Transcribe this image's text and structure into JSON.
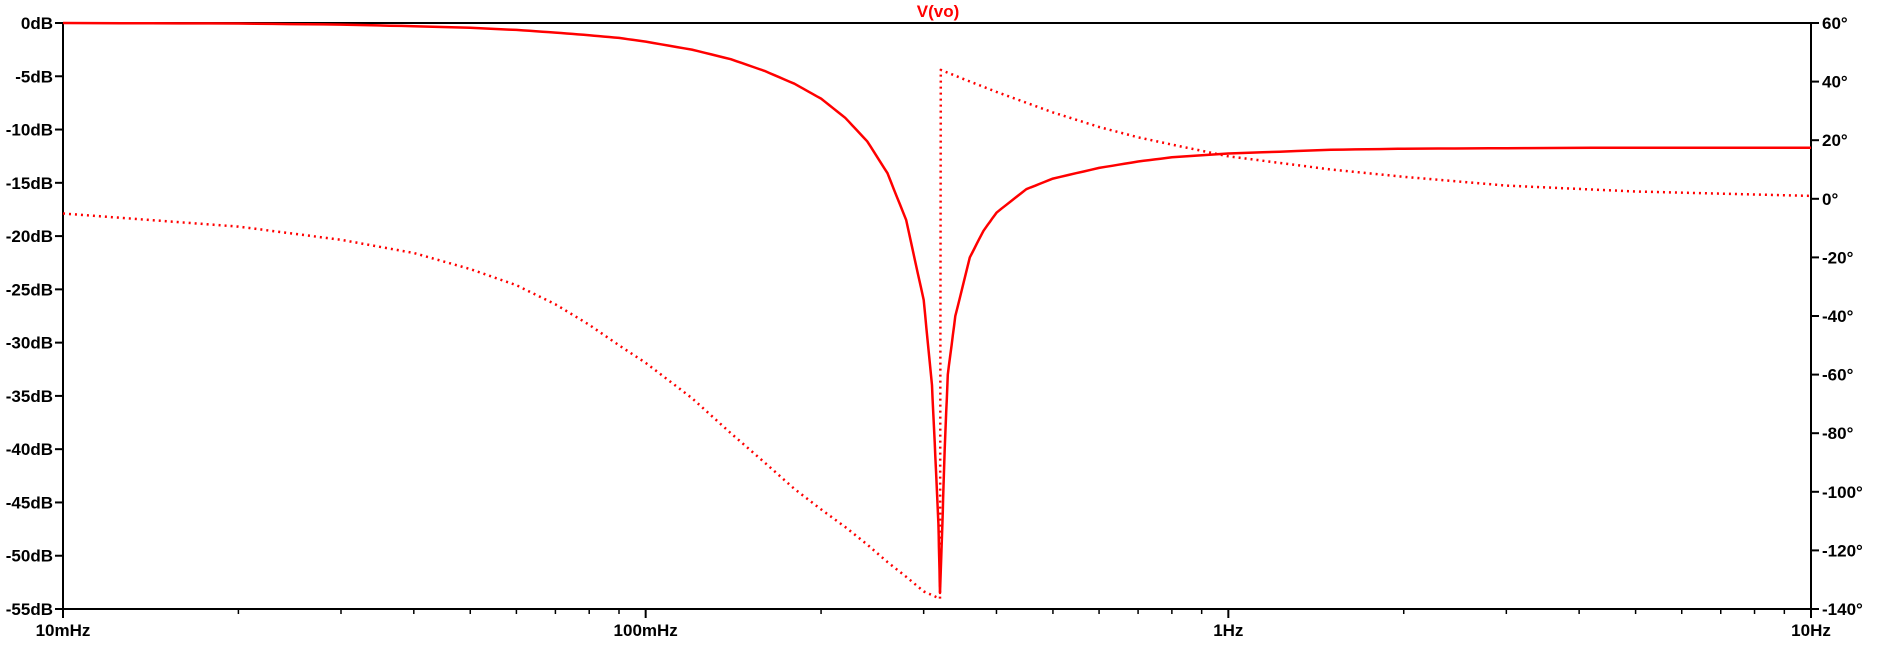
{
  "chart_data": {
    "type": "line",
    "title": "V(vo)",
    "x_axis": {
      "scale": "log",
      "range_hz": [
        0.01,
        10
      ],
      "tick_labels": [
        {
          "value": 0.01,
          "label": "10mHz"
        },
        {
          "value": 0.1,
          "label": "100mHz"
        },
        {
          "value": 1,
          "label": "1Hz"
        },
        {
          "value": 10,
          "label": "10Hz"
        }
      ]
    },
    "left_axis": {
      "unit": "dB",
      "range": [
        -55,
        0
      ],
      "tick_labels": [
        {
          "value": 0,
          "label": "0dB"
        },
        {
          "value": -5,
          "label": "-5dB"
        },
        {
          "value": -10,
          "label": "-10dB"
        },
        {
          "value": -15,
          "label": "-15dB"
        },
        {
          "value": -20,
          "label": "-20dB"
        },
        {
          "value": -25,
          "label": "-25dB"
        },
        {
          "value": -30,
          "label": "-30dB"
        },
        {
          "value": -35,
          "label": "-35dB"
        },
        {
          "value": -40,
          "label": "-40dB"
        },
        {
          "value": -45,
          "label": "-45dB"
        },
        {
          "value": -50,
          "label": "-50dB"
        },
        {
          "value": -55,
          "label": "-55dB"
        }
      ]
    },
    "right_axis": {
      "unit": "°",
      "range": [
        -140,
        60
      ],
      "tick_labels": [
        {
          "value": 60,
          "label": "60°"
        },
        {
          "value": 40,
          "label": "40°"
        },
        {
          "value": 20,
          "label": "20°"
        },
        {
          "value": 0,
          "label": "0°"
        },
        {
          "value": -20,
          "label": "-20°"
        },
        {
          "value": -40,
          "label": "-40°"
        },
        {
          "value": -60,
          "label": "-60°"
        },
        {
          "value": -80,
          "label": "-80°"
        },
        {
          "value": -100,
          "label": "-100°"
        },
        {
          "value": -120,
          "label": "-120°"
        },
        {
          "value": -140,
          "label": "-140°"
        }
      ]
    },
    "grid": false,
    "series": [
      {
        "quantity": "magnitude",
        "axis": "left",
        "style": "solid",
        "color": "#ff0000",
        "points": [
          [
            0.01,
            0
          ],
          [
            0.02,
            -0.05
          ],
          [
            0.03,
            -0.15
          ],
          [
            0.04,
            -0.3
          ],
          [
            0.05,
            -0.45
          ],
          [
            0.06,
            -0.65
          ],
          [
            0.07,
            -0.9
          ],
          [
            0.08,
            -1.15
          ],
          [
            0.09,
            -1.4
          ],
          [
            0.1,
            -1.75
          ],
          [
            0.12,
            -2.5
          ],
          [
            0.14,
            -3.4
          ],
          [
            0.16,
            -4.5
          ],
          [
            0.18,
            -5.7
          ],
          [
            0.2,
            -7.1
          ],
          [
            0.22,
            -8.9
          ],
          [
            0.24,
            -11.1
          ],
          [
            0.26,
            -14.1
          ],
          [
            0.28,
            -18.5
          ],
          [
            0.3,
            -26
          ],
          [
            0.31,
            -34
          ],
          [
            0.315,
            -42
          ],
          [
            0.318,
            -47
          ],
          [
            0.32,
            -53.5
          ],
          [
            0.323,
            -47
          ],
          [
            0.326,
            -40
          ],
          [
            0.33,
            -33
          ],
          [
            0.34,
            -27.5
          ],
          [
            0.36,
            -22
          ],
          [
            0.38,
            -19.5
          ],
          [
            0.4,
            -17.8
          ],
          [
            0.45,
            -15.6
          ],
          [
            0.5,
            -14.6
          ],
          [
            0.6,
            -13.6
          ],
          [
            0.7,
            -13.0
          ],
          [
            0.8,
            -12.6
          ],
          [
            1,
            -12.25
          ],
          [
            1.5,
            -11.9
          ],
          [
            2,
            -11.8
          ],
          [
            3,
            -11.75
          ],
          [
            5,
            -11.7
          ],
          [
            10,
            -11.7
          ]
        ]
      },
      {
        "quantity": "phase",
        "axis": "right",
        "style": "dotted",
        "color": "#ff0000",
        "points": [
          [
            0.01,
            -5
          ],
          [
            0.02,
            -9.5
          ],
          [
            0.03,
            -14
          ],
          [
            0.04,
            -18.5
          ],
          [
            0.05,
            -24
          ],
          [
            0.06,
            -29.5
          ],
          [
            0.07,
            -36
          ],
          [
            0.08,
            -43
          ],
          [
            0.09,
            -50
          ],
          [
            0.1,
            -56
          ],
          [
            0.12,
            -68
          ],
          [
            0.14,
            -80
          ],
          [
            0.16,
            -90
          ],
          [
            0.18,
            -99
          ],
          [
            0.2,
            -106
          ],
          [
            0.22,
            -112
          ],
          [
            0.24,
            -118
          ],
          [
            0.26,
            -124
          ],
          [
            0.28,
            -129
          ],
          [
            0.3,
            -134
          ],
          [
            0.32,
            -136.5
          ],
          [
            0.321,
            44
          ],
          [
            0.35,
            41
          ],
          [
            0.4,
            36.5
          ],
          [
            0.5,
            29.5
          ],
          [
            0.6,
            24.5
          ],
          [
            0.7,
            21
          ],
          [
            0.8,
            18.5
          ],
          [
            1,
            14.5
          ],
          [
            1.5,
            10
          ],
          [
            2,
            7.5
          ],
          [
            3,
            4.5
          ],
          [
            5,
            2.5
          ],
          [
            10,
            1
          ]
        ]
      }
    ]
  }
}
